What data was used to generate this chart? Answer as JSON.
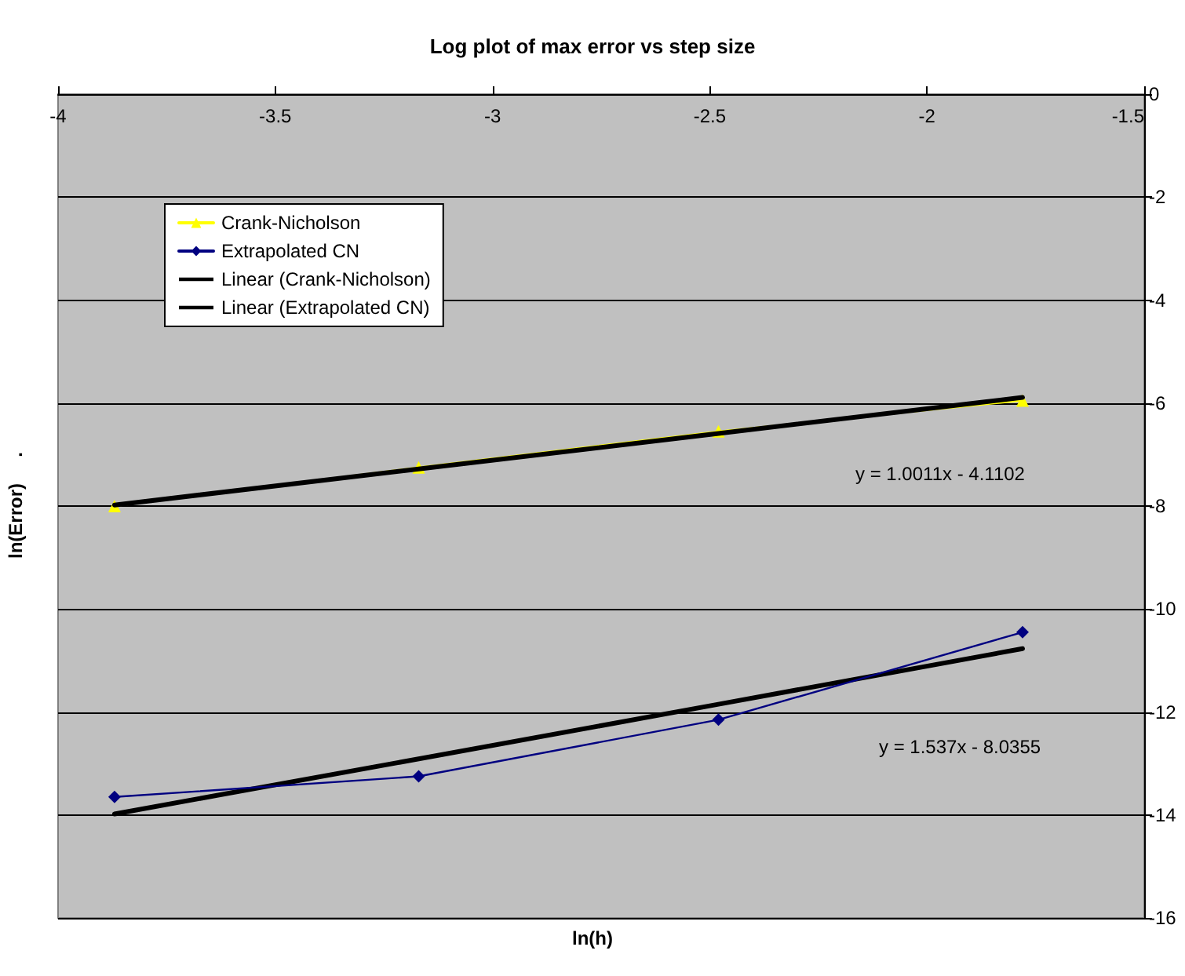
{
  "chart_data": {
    "type": "line",
    "title": "Log plot of max error vs step size",
    "xlabel": "ln(h)",
    "ylabel": "ln(Error)     .",
    "x": [
      -3.87,
      -3.17,
      -2.48,
      -1.78
    ],
    "series": [
      {
        "name": "Crank-Nicholson",
        "color": "#ffff00",
        "marker": "triangle",
        "values": [
          -8.0,
          -7.25,
          -6.55,
          -5.95
        ]
      },
      {
        "name": "Extrapolated CN",
        "color": "#000080",
        "marker": "diamond",
        "values": [
          -13.65,
          -13.25,
          -12.15,
          -10.45
        ]
      },
      {
        "name": "Linear (Crank-Nicholson)",
        "color": "#000000",
        "marker": "none",
        "values": [
          -7.98,
          -7.28,
          -6.59,
          -5.89
        ]
      },
      {
        "name": "Linear (Extrapolated CN)",
        "color": "#000000",
        "marker": "none",
        "values": [
          -13.98,
          -12.91,
          -11.85,
          -10.77
        ]
      }
    ],
    "annotations": [
      "y = 1.0011x - 4.1102",
      "y = 1.537x - 8.0355"
    ],
    "xlim": [
      -4,
      -1.5
    ],
    "xticks": [
      -4,
      -3.5,
      -3,
      -2.5,
      -2,
      -1.5
    ],
    "ylim": [
      -16,
      0
    ],
    "yticks": [
      -16,
      -14,
      -12,
      -10,
      -8,
      -6,
      -4,
      -2,
      0
    ],
    "grid": "y",
    "legend": "top left",
    "line_style": "solid"
  }
}
